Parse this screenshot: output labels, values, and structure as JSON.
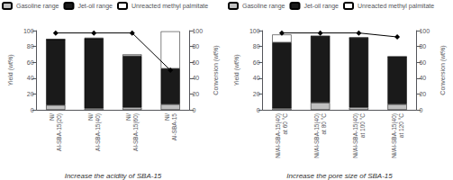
{
  "chart_data": [
    {
      "type": "bar",
      "stacked": true,
      "legend": "upper left",
      "grid": false,
      "categories": [
        "Ni/\nAl-SBA-15(20)",
        "Ni/\nAl-SBA-15(40)",
        "Ni/\nAl-SBA-15(60)",
        "Ni/\nAl-SBA-15"
      ],
      "series": [
        {
          "name": "Gasoline range",
          "color": "#c0c0c0",
          "values": [
            6,
            2,
            3,
            7
          ]
        },
        {
          "name": "Jet-oil range",
          "color": "#1a1a1a",
          "values": [
            83,
            88,
            65,
            45
          ]
        },
        {
          "name": "Unreacted methyl palmitate",
          "color": "#ffffff",
          "values": [
            0,
            1,
            2,
            47
          ]
        },
        {
          "type": "line",
          "axis": "y2",
          "color": "#000000",
          "marker": "diamond",
          "values": [
            97,
            97,
            97,
            50
          ]
        }
      ],
      "ylabel": "Yield (wt%)",
      "y2label": "Conversion (wt%)",
      "ylim": [
        0,
        100
      ],
      "yticks": [
        0,
        20,
        40,
        60,
        80,
        100
      ],
      "y2lim": [
        0,
        100
      ],
      "y2ticks": [
        0,
        20,
        40,
        60,
        80,
        100
      ],
      "annotation": "Increase the acidity of SBA-15"
    },
    {
      "type": "bar",
      "stacked": true,
      "legend": "upper left",
      "grid": false,
      "categories": [
        "Ni/Al-SBA-15(40)\nat 60 °C",
        "Ni/Al-SBA-15(40)\nat 80 °C",
        "Ni/Al-SBA-15(40)\nat 100 °C",
        "Ni/Al-SBA-15(40)\nat 120 °C"
      ],
      "series": [
        {
          "name": "Gasoline range",
          "color": "#c0c0c0",
          "values": [
            2,
            9,
            3,
            7
          ]
        },
        {
          "name": "Jet-oil range",
          "color": "#1a1a1a",
          "values": [
            83,
            84,
            88,
            60
          ]
        },
        {
          "name": "Unreacted methyl palmitate",
          "color": "#ffffff",
          "values": [
            10,
            0,
            0,
            0
          ]
        },
        {
          "type": "line",
          "axis": "y2",
          "color": "#000000",
          "marker": "diamond",
          "values": [
            97,
            97,
            97,
            92
          ]
        }
      ],
      "ylabel": "Yield (wt%)",
      "y2label": "Conversion (wt%)",
      "ylim": [
        0,
        100
      ],
      "yticks": [
        0,
        20,
        40,
        60,
        80,
        100
      ],
      "y2lim": [
        0,
        100
      ],
      "y2ticks": [
        0,
        20,
        40,
        60,
        80,
        100
      ],
      "annotation": "Increase the pore size of SBA-15"
    }
  ]
}
